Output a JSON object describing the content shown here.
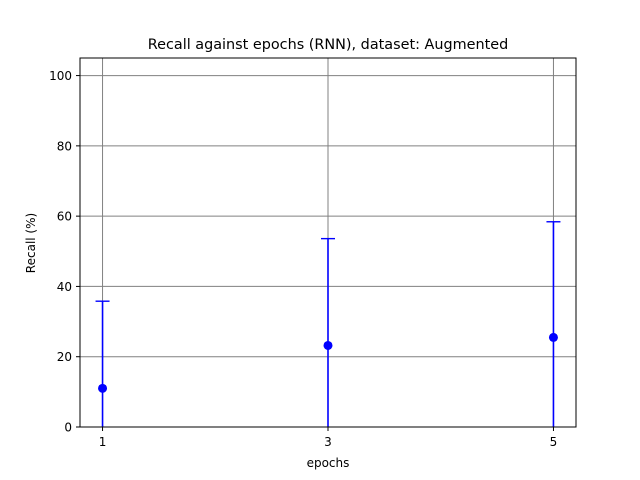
{
  "chart_data": {
    "type": "scatter",
    "title": "Recall against epochs (RNN), dataset: Augmented",
    "xlabel": "epochs",
    "ylabel": "Recall (%)",
    "x_ticks": [
      "1",
      "3",
      "5"
    ],
    "y_ticks": [
      "0",
      "20",
      "40",
      "60",
      "80",
      "100"
    ],
    "xlim": [
      0.8,
      5.2
    ],
    "ylim": [
      0,
      105
    ],
    "grid": true,
    "marker_color": "#0000ff",
    "grid_color": "#808080",
    "series": [
      {
        "x": [
          1,
          3,
          5
        ],
        "y": [
          11.0,
          23.2,
          25.5
        ],
        "error_lower": [
          0,
          0,
          0
        ],
        "error_upper": [
          35.8,
          53.6,
          58.4
        ]
      }
    ]
  }
}
